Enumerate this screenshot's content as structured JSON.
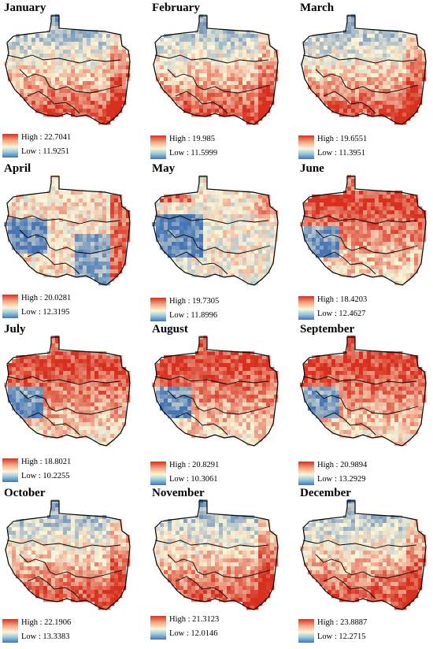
{
  "figure": {
    "panels": [
      {
        "month": "January",
        "high": "High : 22.7041",
        "low": "Low : 11.9251",
        "pattern": "north-cool-south-warm"
      },
      {
        "month": "February",
        "high": "High : 19.985",
        "low": "Low : 11.5999",
        "pattern": "north-cool-south-warm"
      },
      {
        "month": "March",
        "high": "High : 19.6551",
        "low": "Low : 11.3951",
        "pattern": "north-cool-south-warm"
      },
      {
        "month": "April",
        "high": "High : 20.0281",
        "low": "Low : 12.3195",
        "pattern": "mixed"
      },
      {
        "month": "May",
        "high": "High : 19.7305",
        "low": "Low : 11.8996",
        "pattern": "mixed-cool"
      },
      {
        "month": "June",
        "high": "High : 18.4203",
        "low": "Low : 12.4627",
        "pattern": "north-warm"
      },
      {
        "month": "July",
        "high": "High : 18.8021",
        "low": "Low : 10.2255",
        "pattern": "north-warm"
      },
      {
        "month": "August",
        "high": "High : 20.8291",
        "low": "Low : 10.3061",
        "pattern": "north-warm"
      },
      {
        "month": "September",
        "high": "High : 20.9894",
        "low": "Low : 13.2929",
        "pattern": "north-warm"
      },
      {
        "month": "October",
        "high": "High : 22.1906",
        "low": "Low : 13.3383",
        "pattern": "north-cool-south-warm"
      },
      {
        "month": "November",
        "high": "High : 21.3123",
        "low": "Low : 12.0146",
        "pattern": "north-cool-south-warm"
      },
      {
        "month": "December",
        "high": "High : 23.8887",
        "low": "Low : 12.2715",
        "pattern": "north-cool-south-warm"
      }
    ]
  },
  "colors": {
    "high": "#d7301f",
    "mid": "#fdf6d8",
    "low": "#4575b4",
    "boundary": "#000000"
  }
}
